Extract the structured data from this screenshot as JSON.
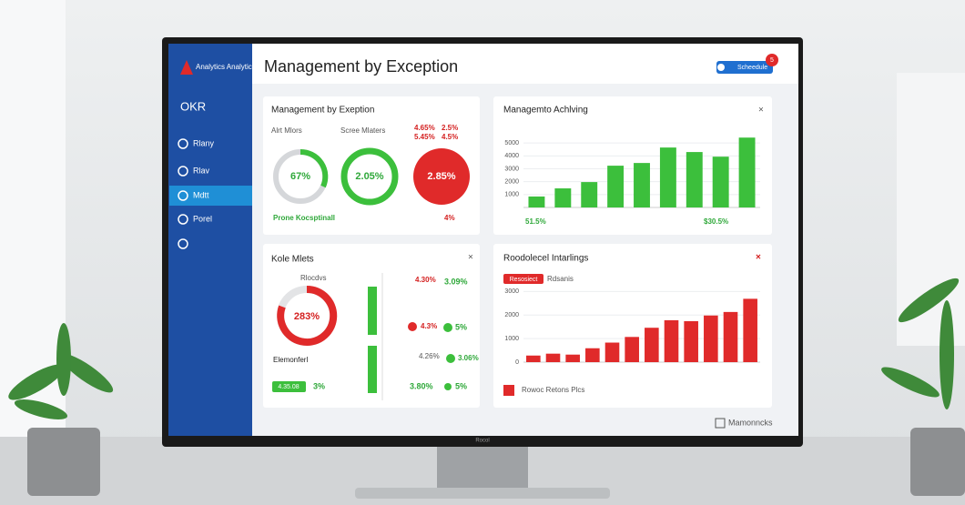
{
  "sidebar": {
    "logo": "Analytics Analytics",
    "section": "OKR",
    "nav": [
      "Rlany",
      "Rlav",
      "Mdtt",
      "Porel"
    ]
  },
  "header": {
    "title": "Management by Exception",
    "button": "Scheedule",
    "badge": "5"
  },
  "panels": [
    {
      "title": "Management by Exeption",
      "labels": [
        "Alrt Mlors",
        "Scree Mlaters"
      ],
      "donuts": [
        "67%",
        "2.05%",
        "2.85%"
      ],
      "alerts": [
        "4.65%",
        "2.5%",
        "5.45%",
        "4.5%"
      ],
      "footer": "Prone Kocsptinall",
      "footer_value": "4%"
    },
    {
      "title": "Kole Mlets",
      "label": "Rlocdvs",
      "donut": "283%",
      "stats": [
        "4.30%",
        "3.09%",
        "4.3%",
        "5%",
        "4.26%",
        "3.06%",
        "3.80%",
        "5%"
      ],
      "sub": "Elemonferl",
      "button": "4.35.08",
      "button_value": "3%"
    },
    {
      "tag": "Resosiect",
      "tag_note": "Rdsanis",
      "footer": "Rowoc Retons Plcs"
    }
  ],
  "brand": "Mamonncks",
  "monitor": "Rocol",
  "chart_data": [
    {
      "type": "bar",
      "title": "Managemto Achlving",
      "color": "#3cbf3c",
      "categories": [
        null,
        null,
        null,
        null,
        null,
        null,
        null,
        null,
        null
      ],
      "values": [
        850,
        1480,
        1970,
        3240,
        3450,
        4650,
        4300,
        3940,
        5420
      ],
      "ylim": [
        0,
        6000
      ],
      "yticks": [
        1000,
        2000,
        3000,
        4000,
        5000
      ],
      "grid": true,
      "annotations": [
        "51.5%",
        "$30.5%"
      ]
    },
    {
      "type": "bar",
      "title": "Roodolecel Intarlings",
      "color": "#e02a2a",
      "categories": [
        null,
        null,
        null,
        null,
        null,
        null,
        null,
        null,
        null,
        null,
        null,
        null
      ],
      "values": [
        280,
        360,
        320,
        590,
        830,
        1070,
        1460,
        1780,
        1740,
        1980,
        2130,
        2690
      ],
      "ylim": [
        0,
        3400
      ],
      "yticks": [
        0,
        1000,
        2000,
        3000
      ],
      "grid": true
    }
  ]
}
